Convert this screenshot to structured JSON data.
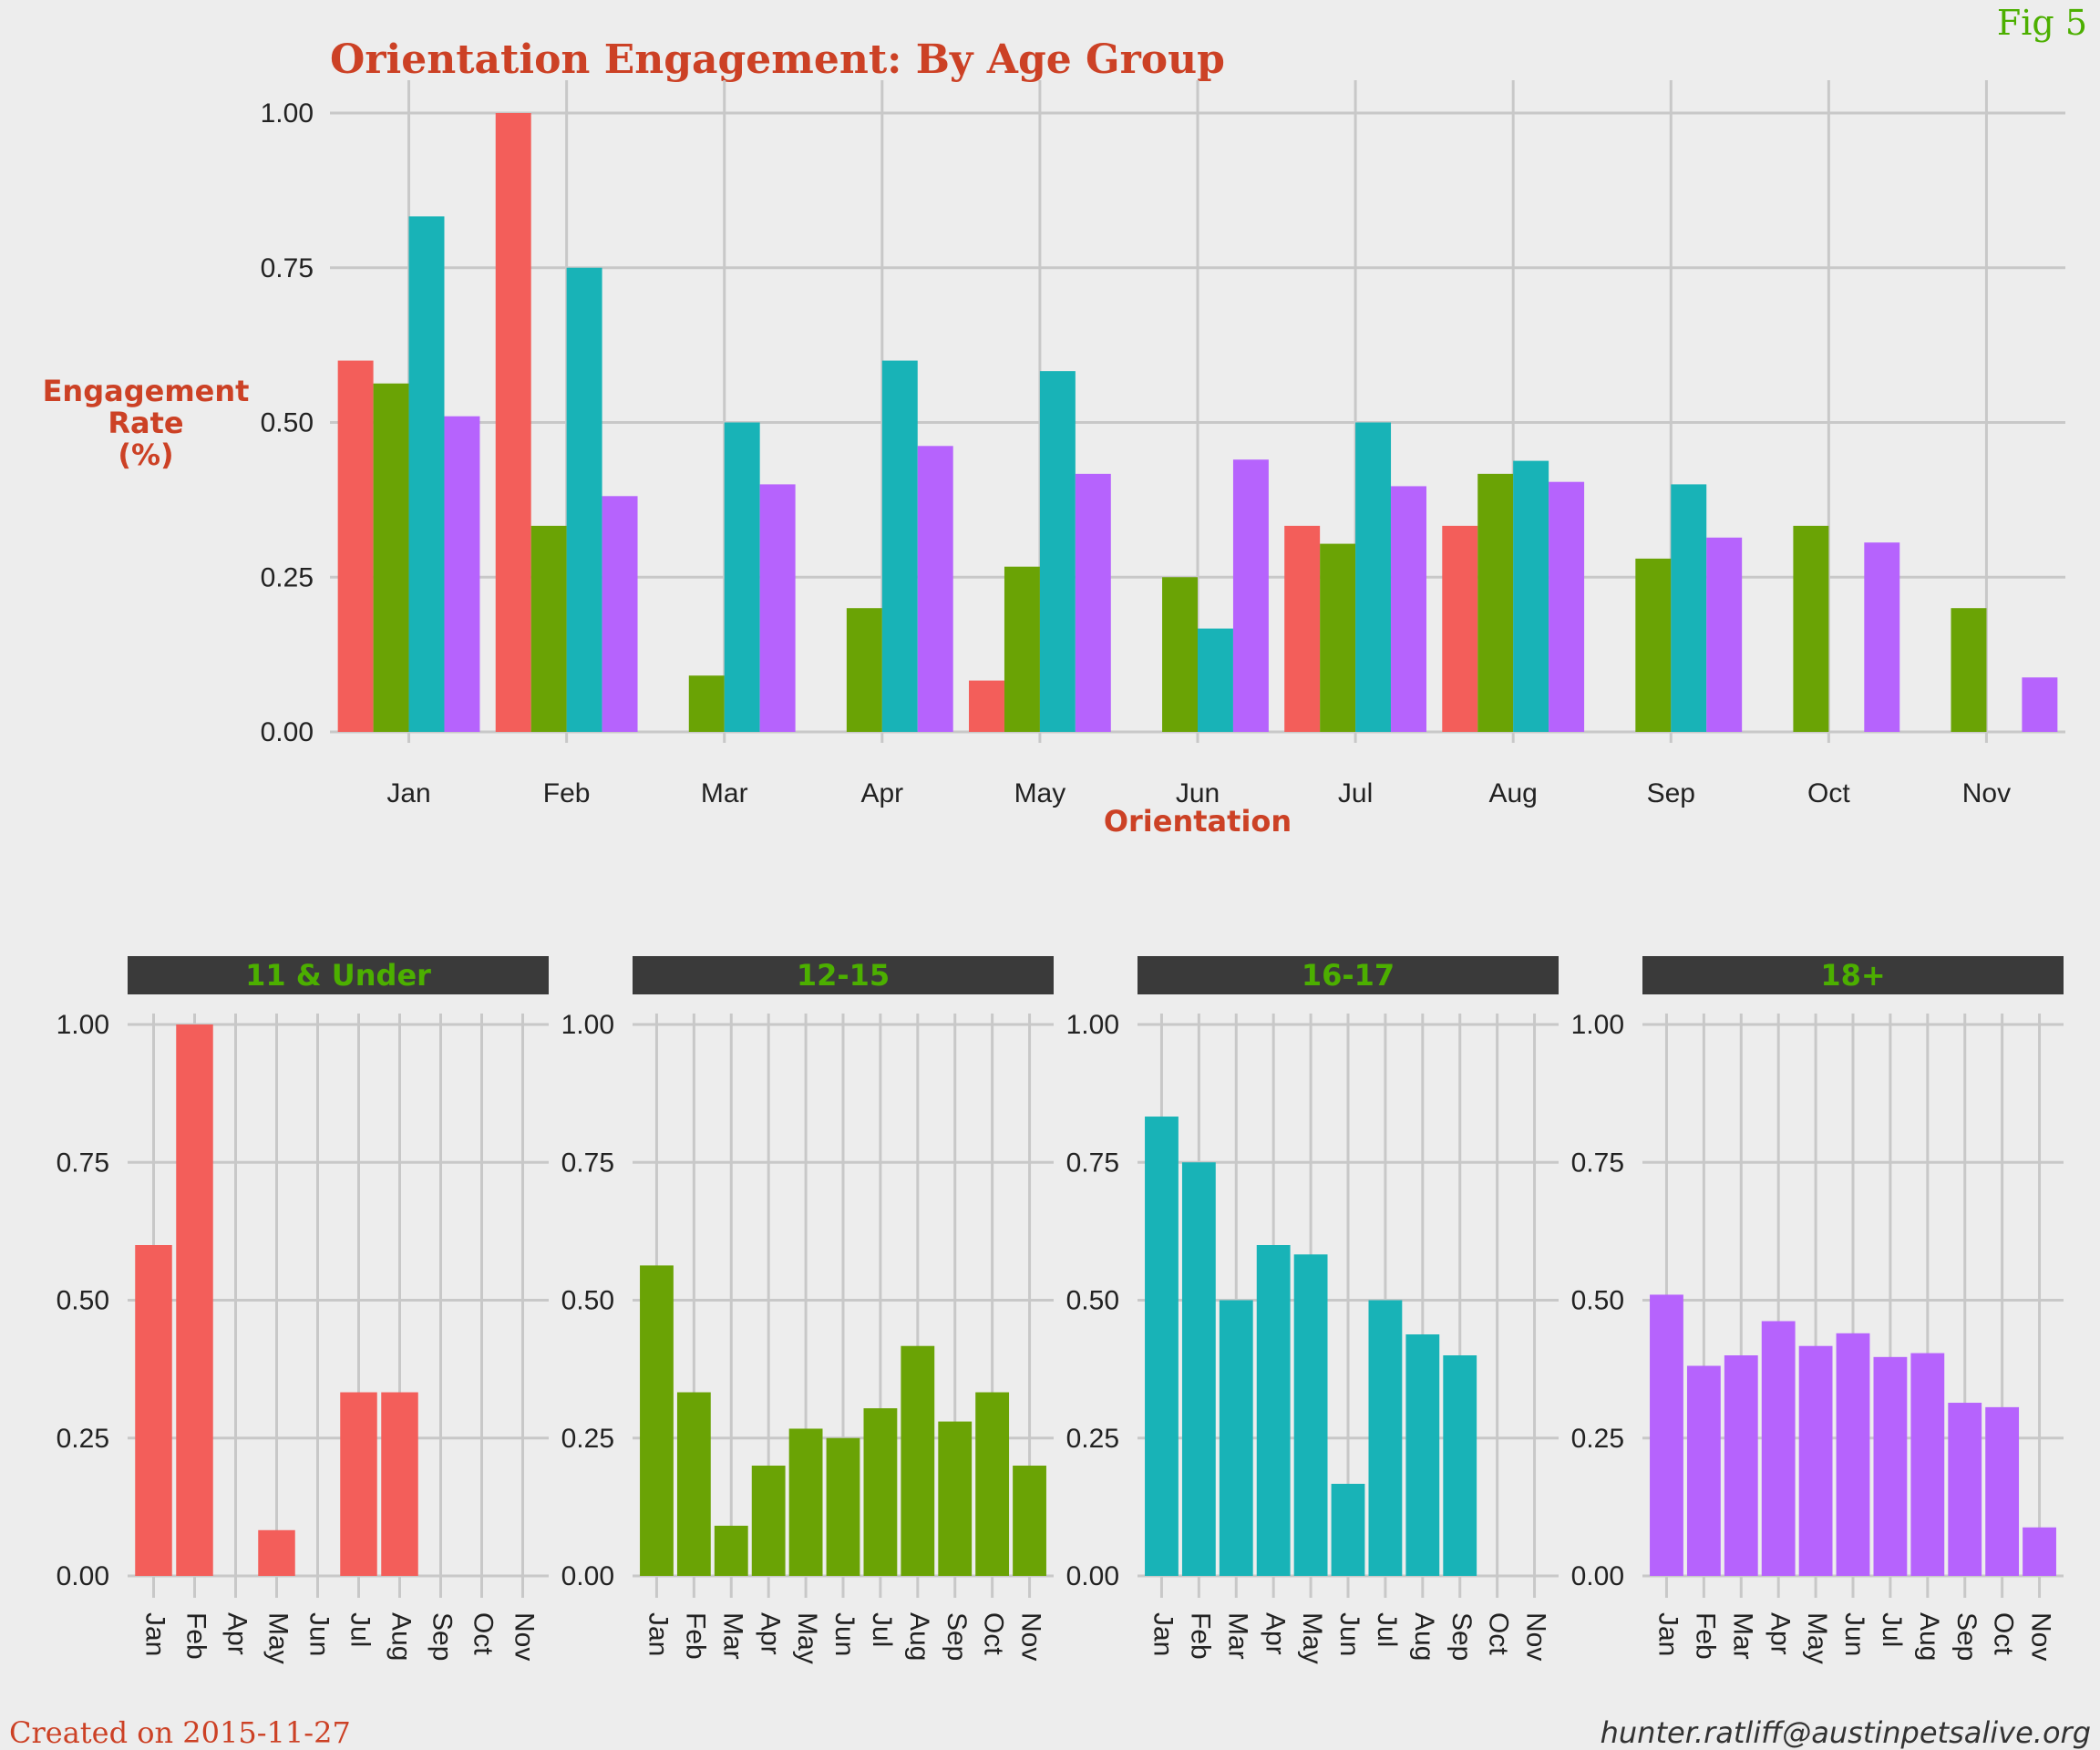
{
  "fig_label": "Fig 5",
  "created": "Created on 2015-11-27",
  "email": "hunter.ratliff@austinpetsalive.org",
  "colors": {
    "title": "#cc4125",
    "green_text": "#4caf00",
    "strip_bg": "#3a3a3a",
    "grid": "#c8c8c8",
    "background": "#ededed"
  },
  "chart_data": [
    {
      "type": "bar",
      "title": "Orientation Engagement: By Age Group",
      "xlabel": "Orientation",
      "ylabel_lines": [
        "Engagement",
        "Rate",
        "(%)"
      ],
      "ylim": [
        0,
        1
      ],
      "yticks": [
        "0.00",
        "0.25",
        "0.50",
        "0.75",
        "1.00"
      ],
      "categories": [
        "Jan",
        "Feb",
        "Mar",
        "Apr",
        "May",
        "Jun",
        "Jul",
        "Aug",
        "Sep",
        "Oct",
        "Nov"
      ],
      "grid": true,
      "series": [
        {
          "name": "11 & Under",
          "color": "#f35e5a",
          "values": [
            0.6,
            1.0,
            null,
            null,
            0.083,
            null,
            0.333,
            0.333,
            null,
            null,
            null
          ]
        },
        {
          "name": "12-15",
          "color": "#6aa305",
          "values": [
            0.563,
            0.333,
            0.091,
            0.2,
            0.267,
            0.25,
            0.304,
            0.417,
            0.28,
            0.333,
            0.2
          ]
        },
        {
          "name": "16-17",
          "color": "#18b3b7",
          "values": [
            0.833,
            0.75,
            0.5,
            0.6,
            0.583,
            0.167,
            0.5,
            0.438,
            0.4,
            null,
            null
          ]
        },
        {
          "name": "18+",
          "color": "#b663fd",
          "values": [
            0.51,
            0.381,
            0.4,
            0.462,
            0.417,
            0.44,
            0.397,
            0.404,
            0.314,
            0.306,
            0.088
          ]
        }
      ]
    },
    {
      "type": "bar",
      "facet": true,
      "ylim": [
        0,
        1
      ],
      "yticks": [
        "0.00",
        "0.25",
        "0.50",
        "0.75",
        "1.00"
      ],
      "categories": [
        "Jan",
        "Feb",
        "Apr",
        "May",
        "Jun",
        "Jul",
        "Aug",
        "Sep",
        "Oct",
        "Nov"
      ],
      "panels": [
        {
          "name": "11 & Under",
          "color": "#f35e5a",
          "categories": [
            "Jan",
            "Feb",
            "Apr",
            "May",
            "Jun",
            "Jul",
            "Aug",
            "Sep",
            "Oct",
            "Nov"
          ],
          "values": [
            0.6,
            1.0,
            null,
            0.083,
            null,
            0.333,
            0.333,
            null,
            null,
            null
          ]
        },
        {
          "name": "12-15",
          "color": "#6aa305",
          "categories": [
            "Jan",
            "Feb",
            "Mar",
            "Apr",
            "May",
            "Jun",
            "Jul",
            "Aug",
            "Sep",
            "Oct",
            "Nov"
          ],
          "values": [
            0.563,
            0.333,
            0.091,
            0.2,
            0.267,
            0.25,
            0.304,
            0.417,
            0.28,
            0.333,
            0.2
          ]
        },
        {
          "name": "16-17",
          "color": "#18b3b7",
          "categories": [
            "Jan",
            "Feb",
            "Mar",
            "Apr",
            "May",
            "Jun",
            "Jul",
            "Aug",
            "Sep",
            "Oct",
            "Nov"
          ],
          "values": [
            0.833,
            0.75,
            0.5,
            0.6,
            0.583,
            0.167,
            0.5,
            0.438,
            0.4,
            null,
            null
          ]
        },
        {
          "name": "18+",
          "color": "#b663fd",
          "categories": [
            "Jan",
            "Feb",
            "Mar",
            "Apr",
            "May",
            "Jun",
            "Jul",
            "Aug",
            "Sep",
            "Oct",
            "Nov"
          ],
          "values": [
            0.51,
            0.381,
            0.4,
            0.462,
            0.417,
            0.44,
            0.397,
            0.404,
            0.314,
            0.306,
            0.088
          ]
        }
      ]
    }
  ]
}
